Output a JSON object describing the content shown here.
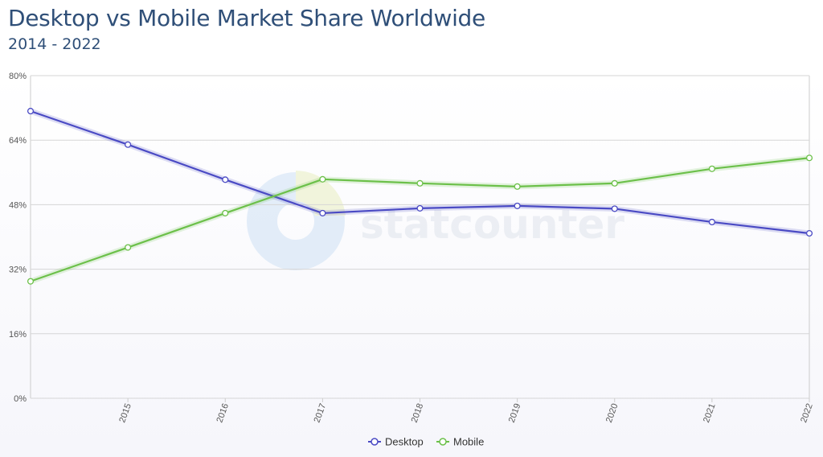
{
  "colors": {
    "title": "#2f4f78",
    "grid": "#d8d8d8",
    "desktop": "#4a4ac4",
    "mobile": "#6cc04a"
  },
  "watermark": "statcounter",
  "chart_data": {
    "type": "line",
    "title": "Desktop vs Mobile Market Share Worldwide",
    "subtitle": "2014 - 2022",
    "xlabel": "",
    "ylabel": "",
    "x": [
      2014,
      2015,
      2016,
      2017,
      2018,
      2019,
      2020,
      2021,
      2022
    ],
    "x_tick_labels": [
      "2015",
      "2016",
      "2017",
      "2018",
      "2019",
      "2020",
      "2021",
      "2022"
    ],
    "y_tick_labels": [
      "0%",
      "16%",
      "32%",
      "48%",
      "64%",
      "80%"
    ],
    "ylim": [
      0,
      80
    ],
    "grid": true,
    "legend_position": "bottom-center",
    "series": [
      {
        "name": "Desktop",
        "color": "#4a4ac4",
        "values": [
          71.2,
          62.9,
          54.2,
          45.9,
          47.1,
          47.7,
          47.0,
          43.7,
          40.9
        ]
      },
      {
        "name": "Mobile",
        "color": "#6cc04a",
        "values": [
          29.0,
          37.4,
          45.9,
          54.3,
          53.3,
          52.5,
          53.3,
          56.9,
          59.6
        ]
      }
    ]
  }
}
